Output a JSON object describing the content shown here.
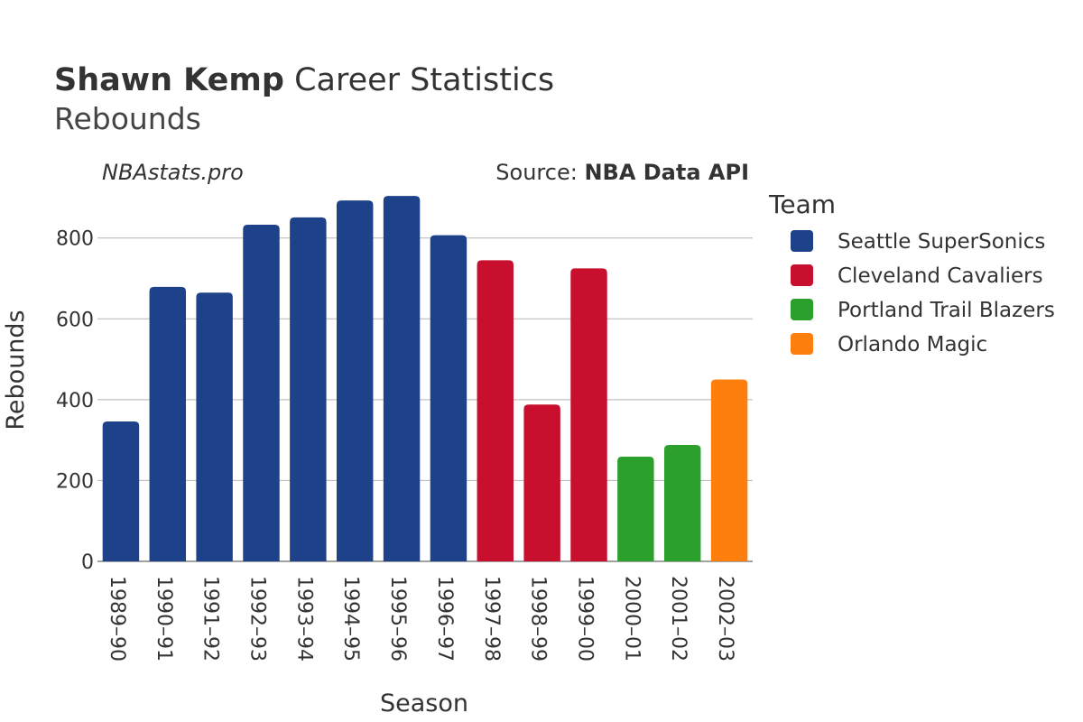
{
  "title": {
    "bold": "Shawn Kemp",
    "rest": " Career Statistics",
    "subtitle": "Rebounds"
  },
  "watermark": "NBAstats.pro",
  "source": {
    "prefix": "Source: ",
    "name": "NBA Data API"
  },
  "legend": {
    "title": "Team",
    "placement": "right"
  },
  "colors": {
    "Seattle SuperSonics": "#1d428a",
    "Cleveland Cavaliers": "#c8102e",
    "Portland Trail Blazers": "#2ca02c",
    "Orlando Magic": "#ff7f0e"
  },
  "chart_data": {
    "type": "bar",
    "xlabel": "Season",
    "ylabel": "Rebounds",
    "ylim": [
      0,
      920
    ],
    "yticks": [
      0,
      200,
      400,
      600,
      800
    ],
    "grid": true,
    "categories": [
      "1989–90",
      "1990–91",
      "1991–92",
      "1992–93",
      "1993–94",
      "1994–95",
      "1995–96",
      "1996–97",
      "1997–98",
      "1998–99",
      "1999–00",
      "2000–01",
      "2001–02",
      "2002–03"
    ],
    "teams": [
      "Seattle SuperSonics",
      "Seattle SuperSonics",
      "Seattle SuperSonics",
      "Seattle SuperSonics",
      "Seattle SuperSonics",
      "Seattle SuperSonics",
      "Seattle SuperSonics",
      "Seattle SuperSonics",
      "Cleveland Cavaliers",
      "Cleveland Cavaliers",
      "Cleveland Cavaliers",
      "Portland Trail Blazers",
      "Portland Trail Blazers",
      "Orlando Magic"
    ],
    "values": [
      346,
      679,
      665,
      833,
      851,
      893,
      904,
      807,
      745,
      388,
      725,
      259,
      288,
      450
    ],
    "series": [
      {
        "name": "Seattle SuperSonics"
      },
      {
        "name": "Cleveland Cavaliers"
      },
      {
        "name": "Portland Trail Blazers"
      },
      {
        "name": "Orlando Magic"
      }
    ]
  }
}
